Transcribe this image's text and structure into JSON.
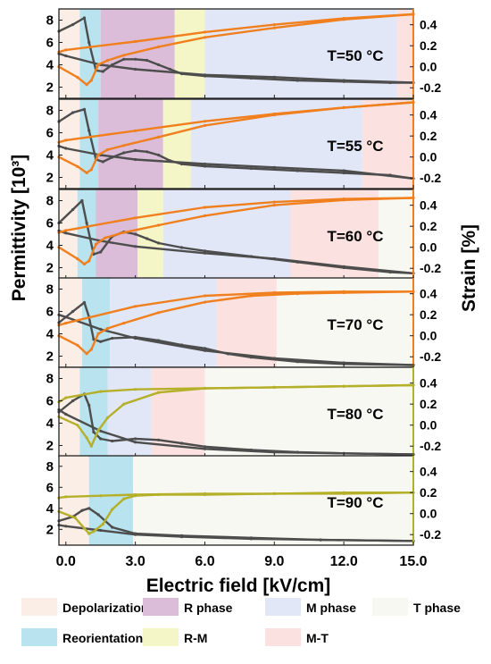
{
  "figure": {
    "ylabel_left": "Permittivity [10³]",
    "ylabel_right": "Strain [%]",
    "xlabel": "Electric field [kV/cm]",
    "x_ticks": [
      "0.0",
      "3.0",
      "6.0",
      "9.0",
      "12.0",
      "15.0"
    ],
    "left_ticks": [
      "2",
      "4",
      "6",
      "8"
    ],
    "right_ticks": [
      "-0.2",
      "0.0",
      "0.2",
      "0.4"
    ]
  },
  "legend": [
    {
      "key": "depolarization",
      "label": "Depolarization",
      "color": "#fbeee6"
    },
    {
      "key": "r_phase",
      "label": "R phase",
      "color": "#dcbdd9"
    },
    {
      "key": "m_phase",
      "label": "M phase",
      "color": "#e2e7f7"
    },
    {
      "key": "t_phase",
      "label": "T phase",
      "color": "#f8f8f2"
    },
    {
      "key": "reorientation",
      "label": "Reorientation",
      "color": "#b9e3ef"
    },
    {
      "key": "r_m",
      "label": "R-M",
      "color": "#f5f6c8"
    },
    {
      "key": "m_t",
      "label": "M-T",
      "color": "#fbe1df"
    }
  ],
  "chart_data": [
    {
      "type": "line",
      "annotation": "T=50 °C",
      "xlim": [
        -0.3,
        15.0
      ],
      "ylim_left": [
        1.0,
        9.0
      ],
      "ylim_right": [
        -0.3,
        0.55
      ],
      "regions": [
        {
          "phase": "depolarization",
          "x": [
            -0.3,
            0.6
          ]
        },
        {
          "phase": "reorientation",
          "x": [
            0.6,
            1.5
          ]
        },
        {
          "phase": "r_phase",
          "x": [
            1.5,
            4.7
          ]
        },
        {
          "phase": "r_m",
          "x": [
            4.7,
            6.0
          ]
        },
        {
          "phase": "m_phase",
          "x": [
            6.0,
            14.3
          ]
        },
        {
          "phase": "m_t",
          "x": [
            14.3,
            15.0
          ]
        }
      ],
      "series": [
        {
          "axis": "left",
          "color": "#4d4d4d",
          "x": [
            -0.3,
            0.3,
            0.8,
            1.0,
            1.3,
            1.6,
            2.0,
            2.5,
            3.0,
            3.5,
            4.0,
            4.5,
            5.0,
            6.0,
            8.0,
            10.0,
            12.0,
            14.0,
            15.0
          ],
          "y": [
            7.0,
            7.6,
            8.2,
            6.0,
            3.5,
            3.4,
            4.0,
            4.5,
            4.5,
            4.4,
            4.0,
            3.6,
            3.2,
            3.0,
            2.8,
            2.6,
            2.5,
            2.4,
            2.4
          ]
        },
        {
          "axis": "left",
          "color": "#4d4d4d",
          "x": [
            15.0,
            12.0,
            9.0,
            6.0,
            3.0,
            1.5,
            0.0,
            -0.3
          ],
          "y": [
            2.4,
            2.6,
            2.9,
            3.1,
            3.6,
            4.0,
            4.8,
            5.0
          ]
        },
        {
          "axis": "right",
          "color": "#f07f1e",
          "x": [
            -0.3,
            0.5,
            0.9,
            1.1,
            1.4,
            1.8,
            2.5,
            4.0,
            6.0,
            9.0,
            12.0,
            15.0
          ],
          "y": [
            0.0,
            -0.1,
            -0.17,
            -0.13,
            0.02,
            0.06,
            0.11,
            0.19,
            0.28,
            0.37,
            0.45,
            0.5
          ]
        },
        {
          "axis": "right",
          "color": "#f07f1e",
          "x": [
            15.0,
            12.0,
            9.0,
            6.0,
            3.0,
            0.0,
            -0.3
          ],
          "y": [
            0.5,
            0.46,
            0.4,
            0.33,
            0.24,
            0.16,
            0.14
          ]
        }
      ]
    },
    {
      "type": "line",
      "annotation": "T=55 °C",
      "xlim": [
        -0.3,
        15.0
      ],
      "ylim_left": [
        1.0,
        9.0
      ],
      "ylim_right": [
        -0.3,
        0.55
      ],
      "regions": [
        {
          "phase": "depolarization",
          "x": [
            -0.3,
            0.6
          ]
        },
        {
          "phase": "reorientation",
          "x": [
            0.6,
            1.4
          ]
        },
        {
          "phase": "r_phase",
          "x": [
            1.4,
            4.2
          ]
        },
        {
          "phase": "r_m",
          "x": [
            4.2,
            5.4
          ]
        },
        {
          "phase": "m_phase",
          "x": [
            5.4,
            12.8
          ]
        },
        {
          "phase": "m_t",
          "x": [
            12.8,
            15.0
          ]
        }
      ],
      "series": [
        {
          "axis": "left",
          "color": "#4d4d4d",
          "x": [
            -0.3,
            0.3,
            0.8,
            1.0,
            1.3,
            1.6,
            2.0,
            2.5,
            3.0,
            3.5,
            4.0,
            4.5,
            5.0,
            6.0,
            8.0,
            10.0,
            12.0,
            14.0,
            15.0
          ],
          "y": [
            7.0,
            7.8,
            8.1,
            6.2,
            3.6,
            3.4,
            3.8,
            4.2,
            4.4,
            4.3,
            4.0,
            3.5,
            3.2,
            3.0,
            2.8,
            2.6,
            2.4,
            2.2,
            1.9
          ]
        },
        {
          "axis": "left",
          "color": "#4d4d4d",
          "x": [
            15.0,
            12.0,
            9.0,
            6.0,
            3.0,
            1.5,
            0.0,
            -0.3
          ],
          "y": [
            1.9,
            2.6,
            2.9,
            3.2,
            3.6,
            4.0,
            4.6,
            4.8
          ]
        },
        {
          "axis": "right",
          "color": "#f07f1e",
          "x": [
            -0.3,
            0.5,
            0.9,
            1.1,
            1.4,
            1.8,
            2.5,
            4.0,
            6.0,
            9.0,
            12.0,
            15.0
          ],
          "y": [
            0.0,
            -0.09,
            -0.15,
            -0.12,
            0.02,
            0.07,
            0.11,
            0.19,
            0.3,
            0.4,
            0.47,
            0.52
          ]
        },
        {
          "axis": "right",
          "color": "#f07f1e",
          "x": [
            15.0,
            12.0,
            9.0,
            6.0,
            3.0,
            0.0,
            -0.3
          ],
          "y": [
            0.52,
            0.47,
            0.41,
            0.34,
            0.25,
            0.16,
            0.14
          ]
        }
      ]
    },
    {
      "type": "line",
      "annotation": "T=60 °C",
      "xlim": [
        -0.3,
        15.0
      ],
      "ylim_left": [
        1.0,
        9.0
      ],
      "ylim_right": [
        -0.3,
        0.55
      ],
      "regions": [
        {
          "phase": "depolarization",
          "x": [
            -0.3,
            0.5
          ]
        },
        {
          "phase": "reorientation",
          "x": [
            0.5,
            1.3
          ]
        },
        {
          "phase": "r_phase",
          "x": [
            1.3,
            3.1
          ]
        },
        {
          "phase": "r_m",
          "x": [
            3.1,
            4.2
          ]
        },
        {
          "phase": "m_phase",
          "x": [
            4.2,
            9.7
          ]
        },
        {
          "phase": "m_t",
          "x": [
            9.7,
            13.5
          ]
        },
        {
          "phase": "t_phase",
          "x": [
            13.5,
            15.0
          ]
        }
      ],
      "series": [
        {
          "axis": "left",
          "color": "#4d4d4d",
          "x": [
            -0.3,
            0.3,
            0.7,
            0.9,
            1.2,
            1.5,
            2.0,
            2.5,
            3.0,
            3.5,
            4.0,
            5.0,
            6.0,
            8.0,
            10.0,
            12.0,
            14.0,
            15.0
          ],
          "y": [
            6.0,
            7.2,
            8.0,
            6.0,
            3.2,
            3.4,
            4.8,
            5.2,
            5.0,
            4.6,
            4.2,
            3.8,
            3.5,
            3.0,
            2.5,
            2.0,
            1.6,
            1.5
          ]
        },
        {
          "axis": "left",
          "color": "#4d4d4d",
          "x": [
            15.0,
            12.0,
            9.0,
            6.0,
            3.0,
            1.5,
            0.0,
            -0.3
          ],
          "y": [
            1.5,
            2.1,
            2.8,
            3.3,
            3.9,
            4.4,
            5.1,
            5.3
          ]
        },
        {
          "axis": "right",
          "color": "#f07f1e",
          "x": [
            -0.3,
            0.5,
            0.8,
            1.0,
            1.3,
            1.7,
            2.5,
            4.0,
            6.0,
            9.0,
            12.0,
            15.0
          ],
          "y": [
            0.0,
            -0.11,
            -0.16,
            -0.13,
            0.03,
            0.09,
            0.14,
            0.21,
            0.3,
            0.4,
            0.45,
            0.47
          ]
        },
        {
          "axis": "right",
          "color": "#f07f1e",
          "x": [
            15.0,
            12.0,
            9.0,
            6.0,
            3.0,
            0.0,
            -0.3
          ],
          "y": [
            0.47,
            0.46,
            0.43,
            0.38,
            0.28,
            0.16,
            0.14
          ]
        }
      ]
    },
    {
      "type": "line",
      "annotation": "T=70 °C",
      "xlim": [
        -0.3,
        15.0
      ],
      "ylim_left": [
        1.0,
        9.0
      ],
      "ylim_right": [
        -0.3,
        0.55
      ],
      "regions": [
        {
          "phase": "depolarization",
          "x": [
            -0.3,
            0.7
          ]
        },
        {
          "phase": "reorientation",
          "x": [
            0.7,
            1.9
          ]
        },
        {
          "phase": "m_phase",
          "x": [
            1.9,
            6.5
          ]
        },
        {
          "phase": "m_t",
          "x": [
            6.5,
            9.1
          ]
        },
        {
          "phase": "t_phase",
          "x": [
            9.1,
            15.0
          ]
        }
      ],
      "series": [
        {
          "axis": "left",
          "color": "#4d4d4d",
          "x": [
            -0.3,
            0.3,
            0.8,
            1.0,
            1.2,
            1.5,
            2.0,
            3.0,
            4.0,
            5.0,
            6.0,
            7.0,
            8.0,
            10.0,
            12.0,
            15.0
          ],
          "y": [
            5.0,
            6.0,
            6.8,
            5.5,
            3.5,
            3.3,
            3.6,
            3.7,
            3.4,
            3.0,
            2.7,
            2.2,
            1.9,
            1.5,
            1.3,
            1.2
          ]
        },
        {
          "axis": "left",
          "color": "#4d4d4d",
          "x": [
            15.0,
            12.0,
            9.0,
            6.0,
            3.0,
            1.5,
            0.0,
            -0.3
          ],
          "y": [
            1.2,
            1.4,
            1.8,
            2.5,
            3.6,
            4.4,
            5.5,
            5.7
          ]
        },
        {
          "axis": "right",
          "color": "#f07f1e",
          "x": [
            -0.3,
            0.5,
            0.9,
            1.1,
            1.4,
            1.8,
            2.5,
            4.0,
            6.0,
            8.0,
            10.0,
            12.0,
            15.0
          ],
          "y": [
            0.0,
            -0.09,
            -0.17,
            -0.13,
            0.02,
            0.07,
            0.12,
            0.22,
            0.32,
            0.38,
            0.4,
            0.41,
            0.42
          ]
        },
        {
          "axis": "right",
          "color": "#f07f1e",
          "x": [
            15.0,
            12.0,
            9.0,
            6.0,
            3.0,
            0.0,
            -0.3
          ],
          "y": [
            0.42,
            0.42,
            0.41,
            0.38,
            0.28,
            0.12,
            0.1
          ]
        }
      ]
    },
    {
      "type": "line",
      "annotation": "T=80 °C",
      "xlim": [
        -0.3,
        15.0
      ],
      "ylim_left": [
        1.0,
        9.0
      ],
      "ylim_right": [
        -0.3,
        0.55
      ],
      "regions": [
        {
          "phase": "depolarization",
          "x": [
            -0.3,
            0.6
          ]
        },
        {
          "phase": "reorientation",
          "x": [
            0.6,
            1.8
          ]
        },
        {
          "phase": "m_phase",
          "x": [
            1.8,
            3.7
          ]
        },
        {
          "phase": "m_t",
          "x": [
            3.7,
            6.0
          ]
        },
        {
          "phase": "t_phase",
          "x": [
            6.0,
            15.0
          ]
        }
      ],
      "series": [
        {
          "axis": "left",
          "color": "#4d4d4d",
          "x": [
            -0.3,
            0.3,
            0.8,
            1.0,
            1.2,
            1.5,
            2.0,
            3.0,
            4.0,
            5.0,
            6.0,
            8.0,
            10.0,
            12.0,
            15.0
          ],
          "y": [
            5.0,
            6.0,
            6.6,
            5.6,
            3.2,
            2.6,
            2.4,
            2.6,
            2.5,
            2.2,
            1.9,
            1.6,
            1.4,
            1.3,
            1.2
          ]
        },
        {
          "axis": "left",
          "color": "#4d4d4d",
          "x": [
            15.0,
            12.0,
            9.0,
            6.0,
            3.0,
            1.5,
            0.0,
            -0.3
          ],
          "y": [
            1.2,
            1.3,
            1.4,
            1.7,
            2.3,
            3.3,
            4.8,
            5.2
          ]
        },
        {
          "axis": "right",
          "color": "#b5b02a",
          "x": [
            -0.3,
            0.5,
            0.9,
            1.1,
            1.4,
            1.8,
            2.5,
            4.0,
            6.0,
            9.0,
            12.0,
            15.0
          ],
          "y": [
            0.08,
            0.0,
            -0.12,
            -0.2,
            -0.05,
            0.07,
            0.2,
            0.31,
            0.35,
            0.36,
            0.37,
            0.38
          ]
        },
        {
          "axis": "right",
          "color": "#b5b02a",
          "x": [
            15.0,
            12.0,
            9.0,
            6.0,
            3.0,
            1.5,
            0.0,
            -0.3
          ],
          "y": [
            0.38,
            0.37,
            0.36,
            0.35,
            0.34,
            0.32,
            0.26,
            0.22
          ]
        }
      ]
    },
    {
      "type": "line",
      "annotation": "T=90 °C",
      "xlim": [
        -0.3,
        15.0
      ],
      "ylim_left": [
        0.5,
        9.0
      ],
      "ylim_right": [
        -0.3,
        0.55
      ],
      "regions": [
        {
          "phase": "depolarization",
          "x": [
            -0.3,
            1.0
          ]
        },
        {
          "phase": "reorientation",
          "x": [
            1.0,
            2.9
          ]
        },
        {
          "phase": "t_phase",
          "x": [
            2.9,
            15.0
          ]
        }
      ],
      "series": [
        {
          "axis": "left",
          "color": "#4d4d4d",
          "x": [
            -0.3,
            0.3,
            0.7,
            1.0,
            1.4,
            2.0,
            3.0,
            5.0,
            8.0,
            11.0,
            15.0
          ],
          "y": [
            2.8,
            3.2,
            3.8,
            4.0,
            3.4,
            2.2,
            1.6,
            1.4,
            1.2,
            1.0,
            0.9
          ]
        },
        {
          "axis": "left",
          "color": "#4d4d4d",
          "x": [
            15.0,
            11.0,
            8.0,
            5.0,
            3.0,
            1.5,
            0.0,
            -0.3
          ],
          "y": [
            0.9,
            1.0,
            1.1,
            1.3,
            1.5,
            1.9,
            2.3,
            2.4
          ]
        },
        {
          "axis": "right",
          "color": "#b5b02a",
          "x": [
            -0.3,
            0.4,
            0.8,
            1.0,
            1.2,
            1.6,
            2.0,
            2.5,
            3.0,
            4.0,
            6.0,
            9.0,
            12.0,
            15.0
          ],
          "y": [
            0.02,
            -0.04,
            -0.14,
            -0.19,
            -0.17,
            -0.1,
            0.04,
            0.14,
            0.17,
            0.18,
            0.18,
            0.19,
            0.19,
            0.2
          ]
        },
        {
          "axis": "right",
          "color": "#b5b02a",
          "x": [
            15.0,
            12.0,
            9.0,
            6.0,
            3.0,
            1.5,
            0.0,
            -0.3
          ],
          "y": [
            0.2,
            0.2,
            0.19,
            0.19,
            0.18,
            0.17,
            0.16,
            0.15
          ]
        }
      ]
    }
  ]
}
